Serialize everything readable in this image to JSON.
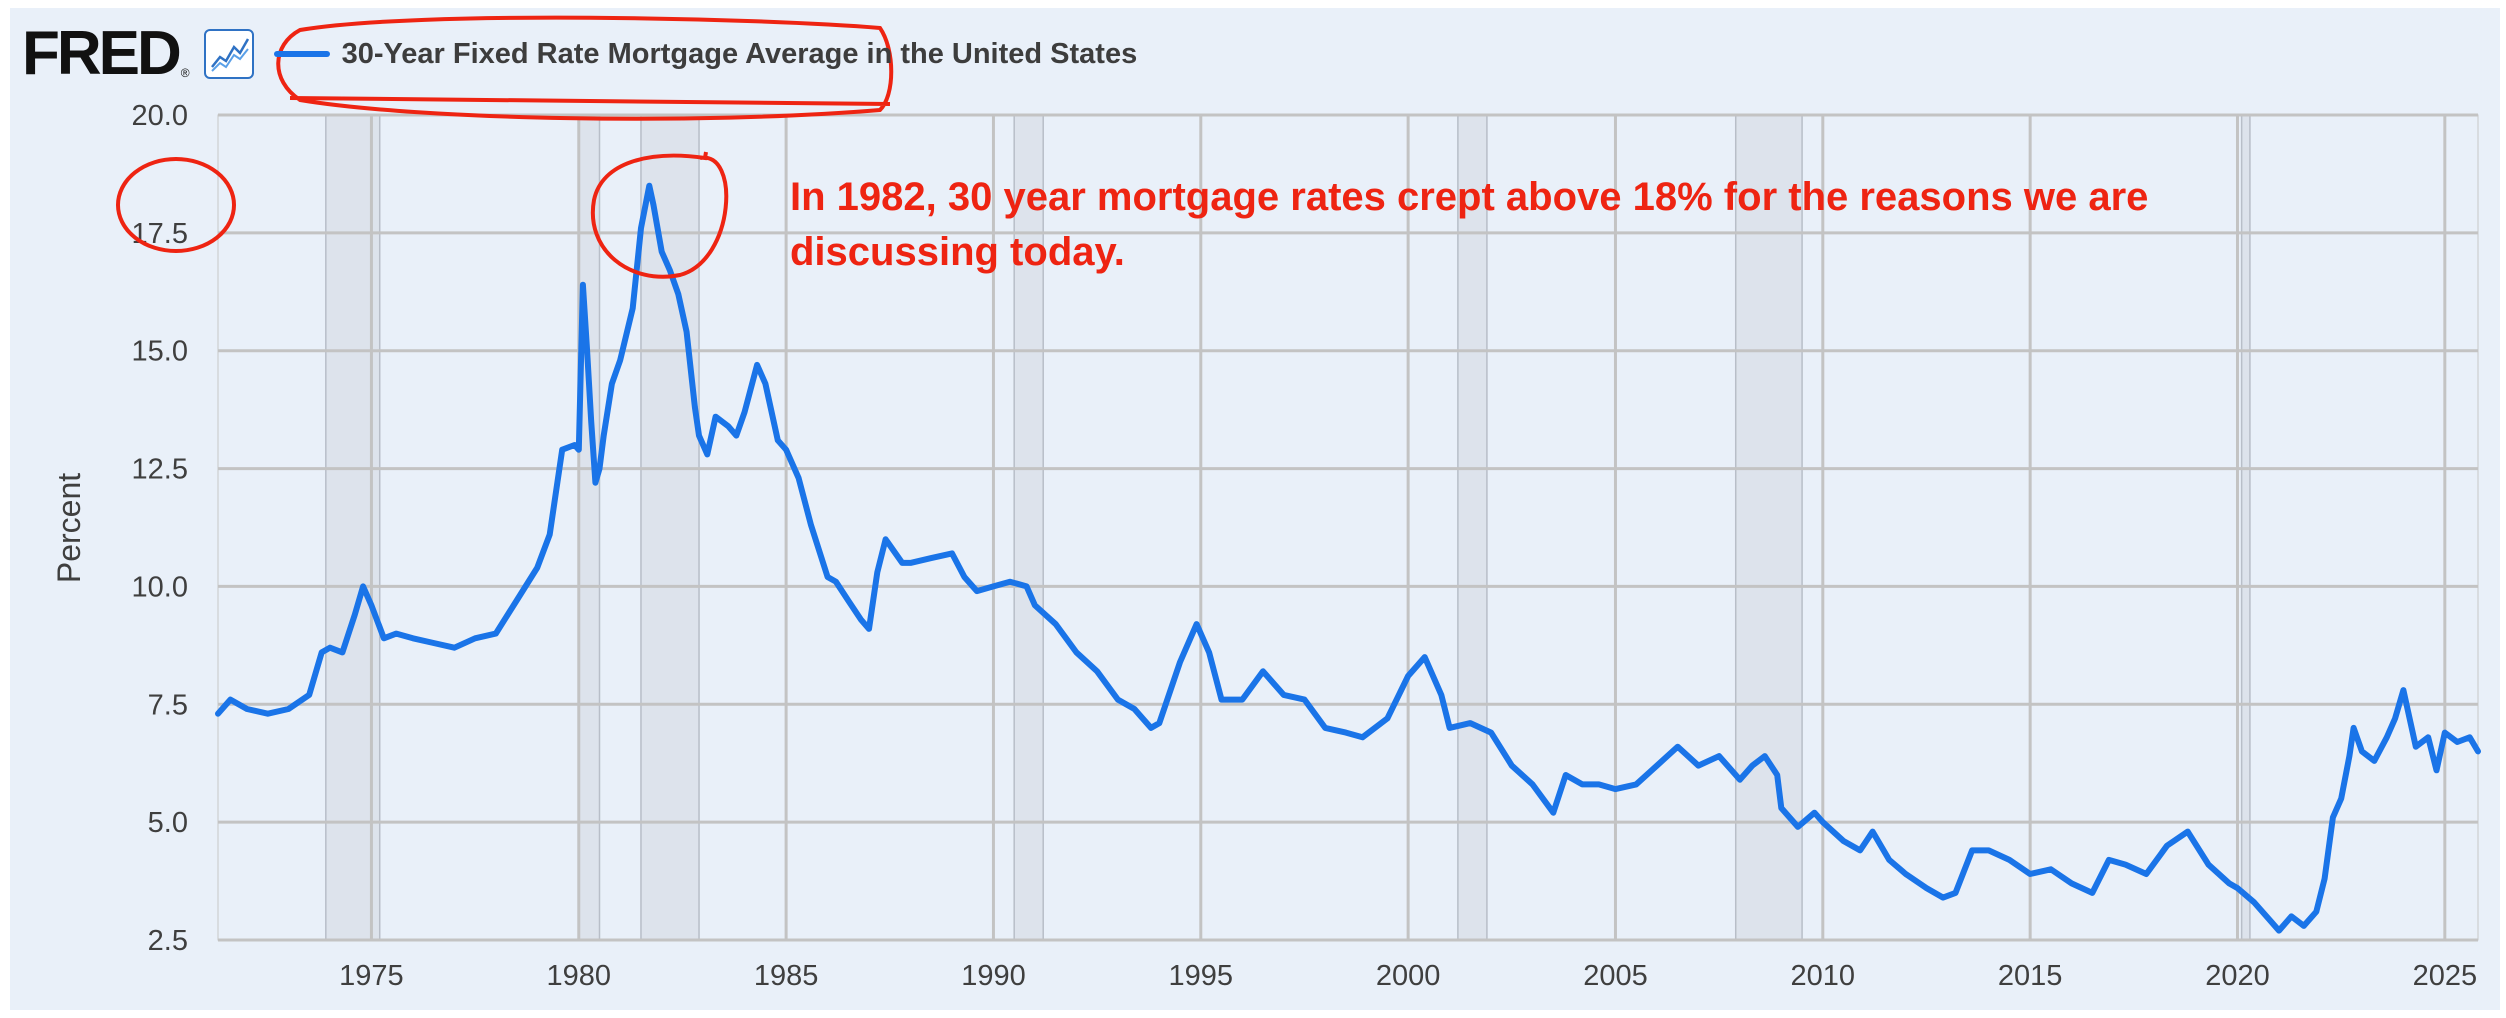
{
  "header": {
    "logo": "FRED",
    "logo_mark": "®",
    "icon": "line-chart-icon",
    "series_title": "30-Year Fixed Rate Mortgage Average in the United States"
  },
  "colors": {
    "line": "#1a74e8",
    "recession": "#dde3ec",
    "annotation": "#ee2412",
    "background": "#e9f0f9"
  },
  "annotation": {
    "line1": "In 1982, 30 year mortgage rates crept above 18% for the reasons we are",
    "line2": "discussing today."
  },
  "chart_data": {
    "type": "line",
    "title": "30-Year Fixed Rate Mortgage Average in the United States",
    "xlabel": "",
    "ylabel": "Percent",
    "ylim": [
      2.5,
      20.0
    ],
    "xlim": [
      1971.3,
      2025.8
    ],
    "grid": true,
    "y_ticks": [
      "2.5",
      "5.0",
      "7.5",
      "10.0",
      "12.5",
      "15.0",
      "17.5",
      "20.0"
    ],
    "x_ticks": [
      "1975",
      "1980",
      "1985",
      "1990",
      "1995",
      "2000",
      "2005",
      "2010",
      "2015",
      "2020",
      "2025"
    ],
    "recessions": [
      [
        1973.9,
        1975.2
      ],
      [
        1980.0,
        1980.5
      ],
      [
        1981.5,
        1982.9
      ],
      [
        1990.5,
        1991.2
      ],
      [
        2001.2,
        2001.9
      ],
      [
        2007.9,
        2009.5
      ],
      [
        2020.1,
        2020.3
      ]
    ],
    "series": [
      {
        "name": "30-Year Fixed Rate Mortgage Average in the United States",
        "x": [
          1971.3,
          1971.6,
          1972.0,
          1972.5,
          1973.0,
          1973.5,
          1973.8,
          1974.0,
          1974.3,
          1974.6,
          1974.8,
          1975.0,
          1975.3,
          1975.6,
          1976.0,
          1976.5,
          1977.0,
          1977.5,
          1978.0,
          1978.5,
          1979.0,
          1979.3,
          1979.6,
          1979.9,
          1980.0,
          1980.1,
          1980.2,
          1980.3,
          1980.4,
          1980.5,
          1980.6,
          1980.8,
          1981.0,
          1981.3,
          1981.5,
          1981.7,
          1981.8,
          1982.0,
          1982.2,
          1982.4,
          1982.6,
          1982.8,
          1982.9,
          1983.1,
          1983.3,
          1983.6,
          1983.8,
          1984.0,
          1984.3,
          1984.5,
          1984.8,
          1985.0,
          1985.3,
          1985.6,
          1986.0,
          1986.2,
          1986.5,
          1986.8,
          1987.0,
          1987.2,
          1987.4,
          1987.8,
          1988.0,
          1988.5,
          1989.0,
          1989.3,
          1989.6,
          1990.0,
          1990.4,
          1990.8,
          1991.0,
          1991.5,
          1992.0,
          1992.5,
          1993.0,
          1993.4,
          1993.8,
          1994.0,
          1994.5,
          1994.9,
          1995.2,
          1995.5,
          1996.0,
          1996.5,
          1997.0,
          1997.5,
          1998.0,
          1998.5,
          1998.9,
          1999.5,
          2000.0,
          2000.4,
          2000.8,
          2001.0,
          2001.5,
          2002.0,
          2002.5,
          2003.0,
          2003.5,
          2003.8,
          2004.2,
          2004.6,
          2005.0,
          2005.5,
          2006.0,
          2006.5,
          2007.0,
          2007.5,
          2008.0,
          2008.3,
          2008.6,
          2008.9,
          2009.0,
          2009.4,
          2009.8,
          2010.0,
          2010.5,
          2010.9,
          2011.2,
          2011.6,
          2012.0,
          2012.5,
          2012.9,
          2013.2,
          2013.6,
          2014.0,
          2014.5,
          2015.0,
          2015.5,
          2016.0,
          2016.5,
          2016.9,
          2017.3,
          2017.8,
          2018.3,
          2018.8,
          2019.3,
          2019.8,
          2020.0,
          2020.4,
          2020.8,
          2021.0,
          2021.3,
          2021.6,
          2021.9,
          2022.1,
          2022.3,
          2022.5,
          2022.7,
          2022.8,
          2023.0,
          2023.3,
          2023.6,
          2023.8,
          2024.0,
          2024.3,
          2024.6,
          2024.8,
          2025.0,
          2025.3,
          2025.6,
          2025.8
        ],
        "values": [
          7.3,
          7.6,
          7.4,
          7.3,
          7.4,
          7.7,
          8.6,
          8.7,
          8.6,
          9.4,
          10.0,
          9.6,
          8.9,
          9.0,
          8.9,
          8.8,
          8.7,
          8.9,
          9.0,
          9.7,
          10.4,
          11.1,
          12.9,
          13.0,
          12.9,
          16.4,
          15.0,
          13.5,
          12.2,
          12.5,
          13.2,
          14.3,
          14.8,
          15.9,
          17.6,
          18.5,
          18.1,
          17.1,
          16.7,
          16.2,
          15.4,
          13.8,
          13.2,
          12.8,
          13.6,
          13.4,
          13.2,
          13.7,
          14.7,
          14.3,
          13.1,
          12.9,
          12.3,
          11.3,
          10.2,
          10.1,
          9.7,
          9.3,
          9.1,
          10.3,
          11.0,
          10.5,
          10.5,
          10.6,
          10.7,
          10.2,
          9.9,
          10.0,
          10.1,
          10.0,
          9.6,
          9.2,
          8.6,
          8.2,
          7.6,
          7.4,
          7.0,
          7.1,
          8.4,
          9.2,
          8.6,
          7.6,
          7.6,
          8.2,
          7.7,
          7.6,
          7.0,
          6.9,
          6.8,
          7.2,
          8.1,
          8.5,
          7.7,
          7.0,
          7.1,
          6.9,
          6.2,
          5.8,
          5.2,
          6.0,
          5.8,
          5.8,
          5.7,
          5.8,
          6.2,
          6.6,
          6.2,
          6.4,
          5.9,
          6.2,
          6.4,
          6.0,
          5.3,
          4.9,
          5.2,
          5.0,
          4.6,
          4.4,
          4.8,
          4.2,
          3.9,
          3.6,
          3.4,
          3.5,
          4.4,
          4.4,
          4.2,
          3.9,
          4.0,
          3.7,
          3.5,
          4.2,
          4.1,
          3.9,
          4.5,
          4.8,
          4.1,
          3.7,
          3.6,
          3.3,
          2.9,
          2.7,
          3.0,
          2.8,
          3.1,
          3.8,
          5.1,
          5.5,
          6.4,
          7.0,
          6.5,
          6.3,
          6.8,
          7.2,
          7.8,
          6.6,
          6.8,
          6.1,
          6.9,
          6.7,
          6.8,
          6.5
        ]
      }
    ]
  }
}
